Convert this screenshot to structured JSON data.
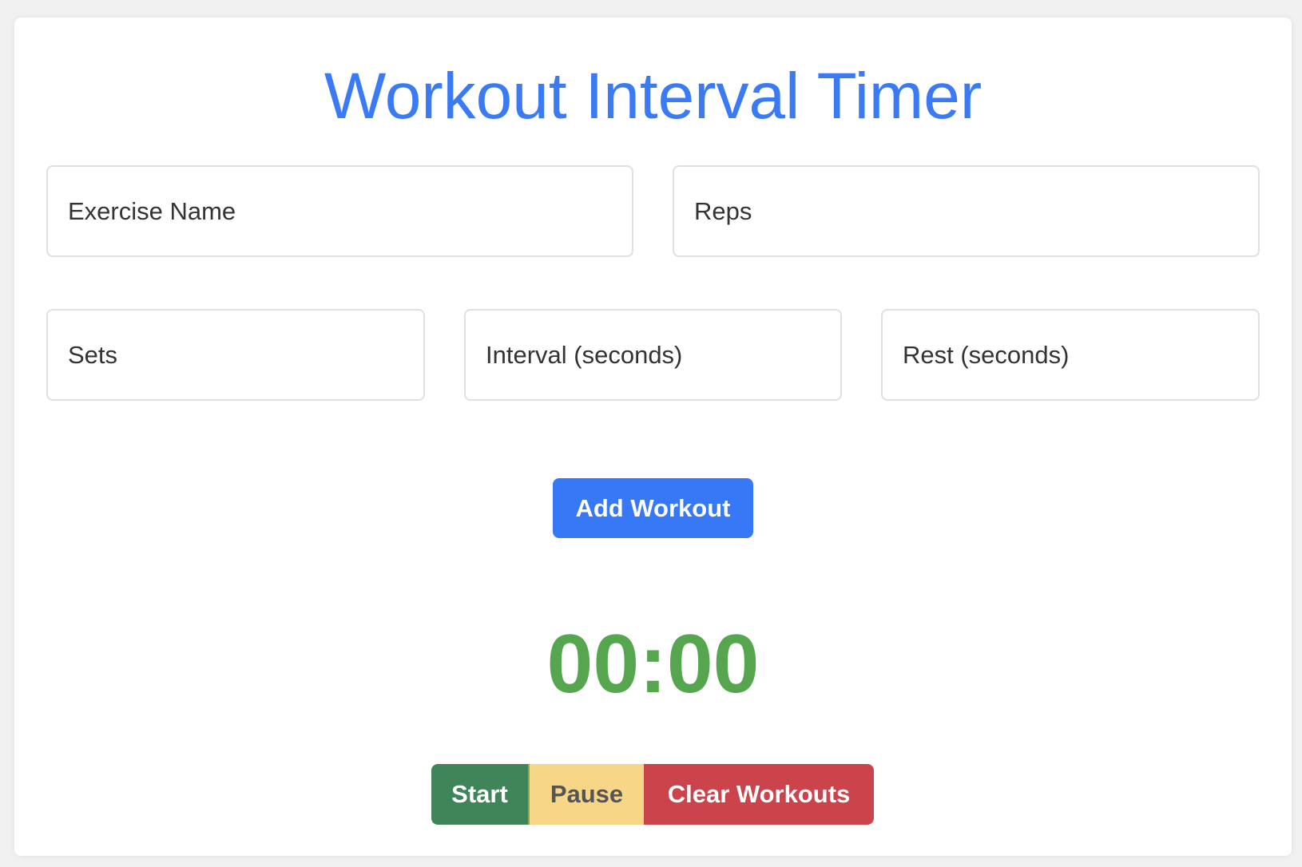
{
  "title": "Workout Interval Timer",
  "form": {
    "exercise_name": {
      "placeholder": "Exercise Name",
      "value": ""
    },
    "reps": {
      "placeholder": "Reps",
      "value": ""
    },
    "sets": {
      "placeholder": "Sets",
      "value": ""
    },
    "interval": {
      "placeholder": "Interval (seconds)",
      "value": ""
    },
    "rest": {
      "placeholder": "Rest (seconds)",
      "value": ""
    },
    "add_label": "Add Workout"
  },
  "timer": {
    "display": "00:00"
  },
  "controls": {
    "start": "Start",
    "pause": "Pause",
    "clear": "Clear Workouts"
  },
  "colors": {
    "accent": "#3778f6",
    "timer": "#56a650",
    "start": "#40855a",
    "pause": "#f7d687",
    "clear": "#cc444b"
  }
}
